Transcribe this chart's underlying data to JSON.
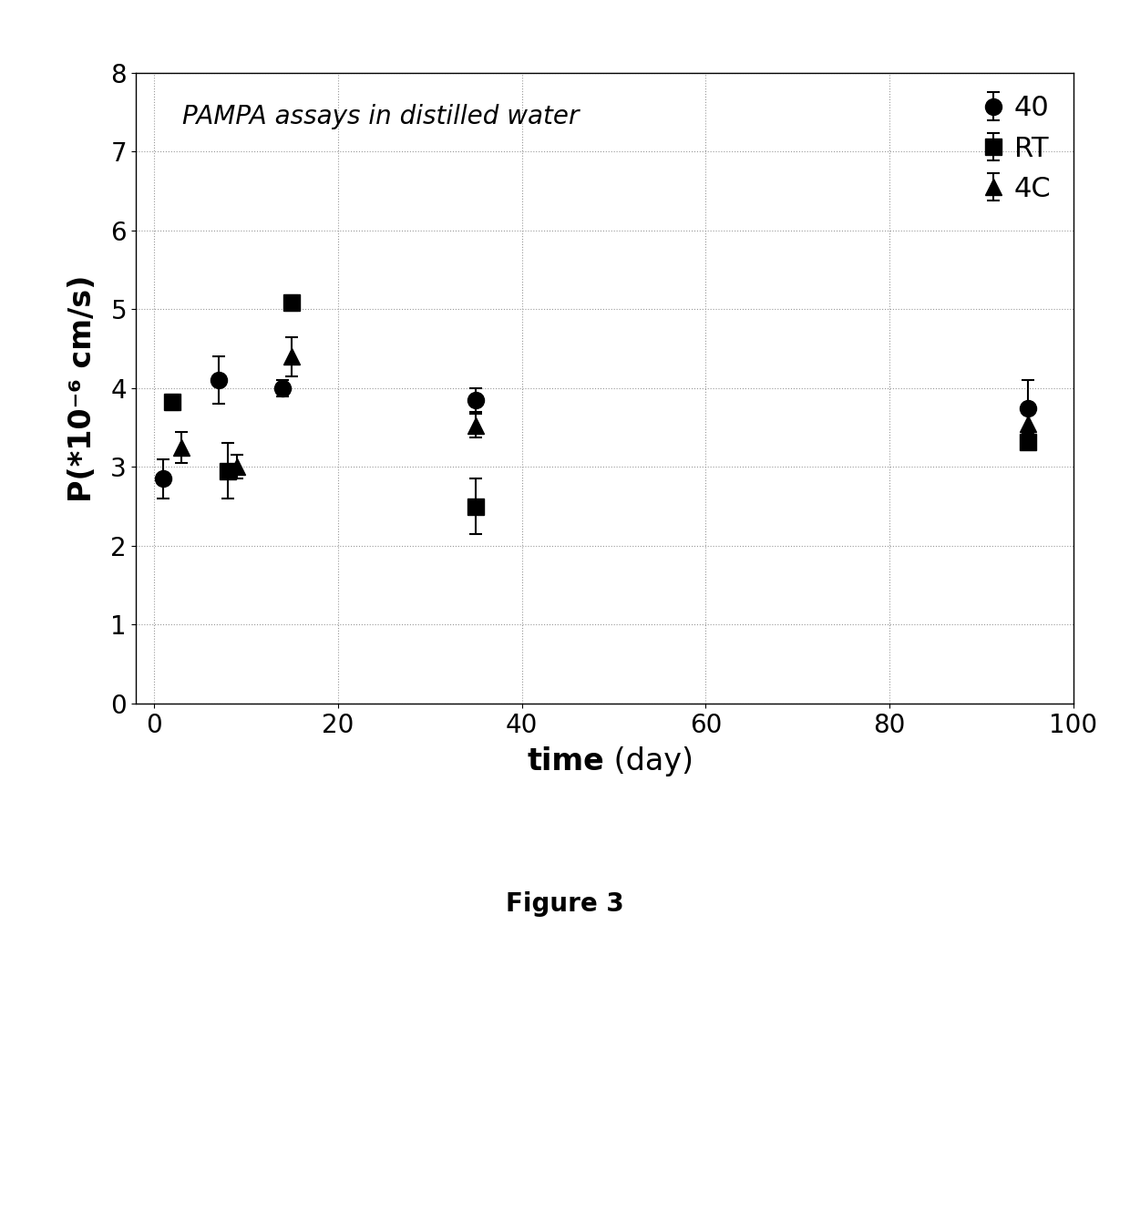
{
  "title_text": "PAMPA assays in distilled water",
  "xlabel_bold": "time",
  "xlabel_normal": " (day)",
  "ylabel": "P(*10⁻⁶ cm/s)",
  "xlim": [
    -2,
    100
  ],
  "ylim": [
    0,
    8
  ],
  "yticks": [
    0,
    1,
    2,
    3,
    4,
    5,
    6,
    7,
    8
  ],
  "xticks": [
    0,
    20,
    40,
    60,
    80,
    100
  ],
  "series": [
    {
      "x": [
        1,
        7,
        14,
        35,
        95
      ],
      "y": [
        2.85,
        4.1,
        4.0,
        3.85,
        3.75
      ],
      "yerr": [
        0.25,
        0.3,
        0.1,
        0.15,
        0.35
      ],
      "marker": "o",
      "label": "40"
    },
    {
      "x": [
        2,
        8,
        15,
        35,
        95
      ],
      "y": [
        3.82,
        2.95,
        5.08,
        2.5,
        3.32
      ],
      "yerr": [
        0.1,
        0.35,
        0.1,
        0.35,
        0.1
      ],
      "marker": "s",
      "label": "RT"
    },
    {
      "x": [
        3,
        9,
        15,
        35,
        95
      ],
      "y": [
        3.25,
        3.0,
        4.4,
        3.52,
        3.55
      ],
      "yerr": [
        0.2,
        0.15,
        0.25,
        0.15,
        0.15
      ],
      "marker": "^",
      "label": "4C"
    }
  ],
  "color": "#000000",
  "background_color": "#ffffff",
  "figure_caption": "Figure 3",
  "grid_color": "#999999",
  "markersize": 13,
  "tick_fontsize": 20,
  "label_fontsize": 24,
  "legend_fontsize": 22,
  "annotation_fontsize": 20,
  "caption_fontsize": 20
}
